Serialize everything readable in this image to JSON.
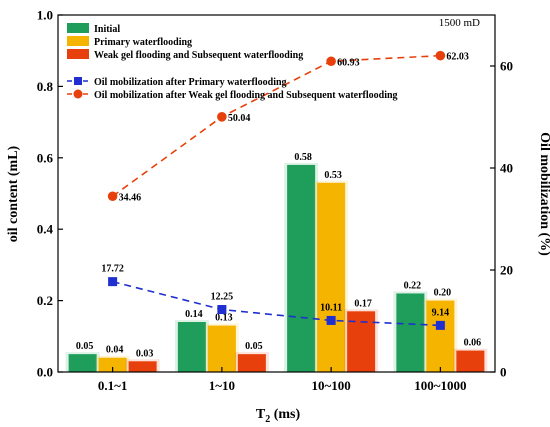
{
  "chart_data": {
    "type": "bar",
    "annotation": "1500 mD",
    "xlabel_main": "T",
    "xlabel_sub": "2",
    "xlabel_rest": " (ms)",
    "ylabel": "oil content (mL)",
    "y2label": "Oil mobilization (%)",
    "categories": [
      "0.1~1",
      "1~10",
      "10~100",
      "100~1000"
    ],
    "ylim": [
      0,
      1.0
    ],
    "yticks": [
      "0.0",
      "0.2",
      "0.4",
      "0.6",
      "0.8",
      "1.0"
    ],
    "y2lim": [
      0,
      70
    ],
    "y2ticks": [
      "0",
      "20",
      "40",
      "60"
    ],
    "series": [
      {
        "name": "Initial",
        "values": [
          0.05,
          0.14,
          0.58,
          0.22
        ],
        "labels": [
          "0.05",
          "0.14",
          "0.58",
          "0.22"
        ],
        "color": "#1e9e5a"
      },
      {
        "name": "Primary waterflooding",
        "values": [
          0.04,
          0.13,
          0.53,
          0.2
        ],
        "labels": [
          "0.04",
          "0.13",
          "0.53",
          "0.20"
        ],
        "color": "#f5b400"
      },
      {
        "name": "Weak gel flooding and Subsequent waterflooding",
        "values": [
          0.03,
          0.05,
          0.17,
          0.06
        ],
        "labels": [
          "0.03",
          "0.05",
          "0.17",
          "0.06"
        ],
        "color": "#e8400c"
      }
    ],
    "lines": [
      {
        "name": "Oil mobilization after Primary waterflooding",
        "values": [
          17.72,
          12.25,
          10.11,
          9.14
        ],
        "labels": [
          "17.72",
          "12.25",
          "10.11",
          "9.14"
        ],
        "color": "#1f2fd0",
        "marker": "square"
      },
      {
        "name": "Oil mobilization after Weak gel flooding and Subsequent waterflooding",
        "values": [
          34.46,
          50.04,
          60.93,
          62.03
        ],
        "labels": [
          "34.46",
          "50.04",
          "60.93",
          "62.03"
        ],
        "color": "#e8400c",
        "marker": "circle"
      }
    ]
  }
}
